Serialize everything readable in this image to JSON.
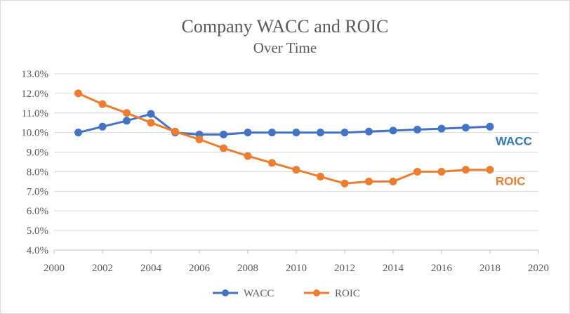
{
  "chart_data": {
    "type": "line",
    "title": "Company  WACC and ROIC",
    "subtitle": "Over Time",
    "xlabel": "",
    "ylabel": "",
    "xlim": [
      2000,
      2020
    ],
    "ylim": [
      4.0,
      13.0
    ],
    "x_ticks": [
      2000,
      2002,
      2004,
      2006,
      2008,
      2010,
      2012,
      2014,
      2016,
      2018,
      2020
    ],
    "x_tick_labels": [
      "2000",
      "2002",
      "2004",
      "2006",
      "2008",
      "2010",
      "2012",
      "2014",
      "2016",
      "2018",
      "2020"
    ],
    "y_ticks": [
      4.0,
      5.0,
      6.0,
      7.0,
      8.0,
      9.0,
      10.0,
      11.0,
      12.0,
      13.0
    ],
    "y_tick_labels": [
      "4.0%",
      "5.0%",
      "6.0%",
      "7.0%",
      "8.0%",
      "9.0%",
      "10.0%",
      "11.0%",
      "12.0%",
      "13.0%"
    ],
    "grid": "horizontal",
    "legend_position": "bottom",
    "x": [
      2001,
      2002,
      2003,
      2004,
      2005,
      2006,
      2007,
      2008,
      2009,
      2010,
      2011,
      2012,
      2013,
      2014,
      2015,
      2016,
      2017,
      2018
    ],
    "series": [
      {
        "name": "WACC",
        "label": "WACC",
        "color": "#4472c4",
        "label_color": "#2e75b6",
        "values": [
          10.0,
          10.3,
          10.6,
          10.95,
          10.0,
          9.9,
          9.9,
          10.0,
          10.0,
          10.0,
          10.0,
          10.0,
          10.05,
          10.1,
          10.15,
          10.2,
          10.25,
          10.3
        ]
      },
      {
        "name": "ROIC",
        "label": "ROIC",
        "color": "#ed7d31",
        "label_color": "#ed7d31",
        "values": [
          12.0,
          11.45,
          11.0,
          10.5,
          10.05,
          9.65,
          9.2,
          8.8,
          8.45,
          8.1,
          7.75,
          7.4,
          7.5,
          7.5,
          8.0,
          8.0,
          8.1,
          8.1
        ]
      }
    ]
  }
}
